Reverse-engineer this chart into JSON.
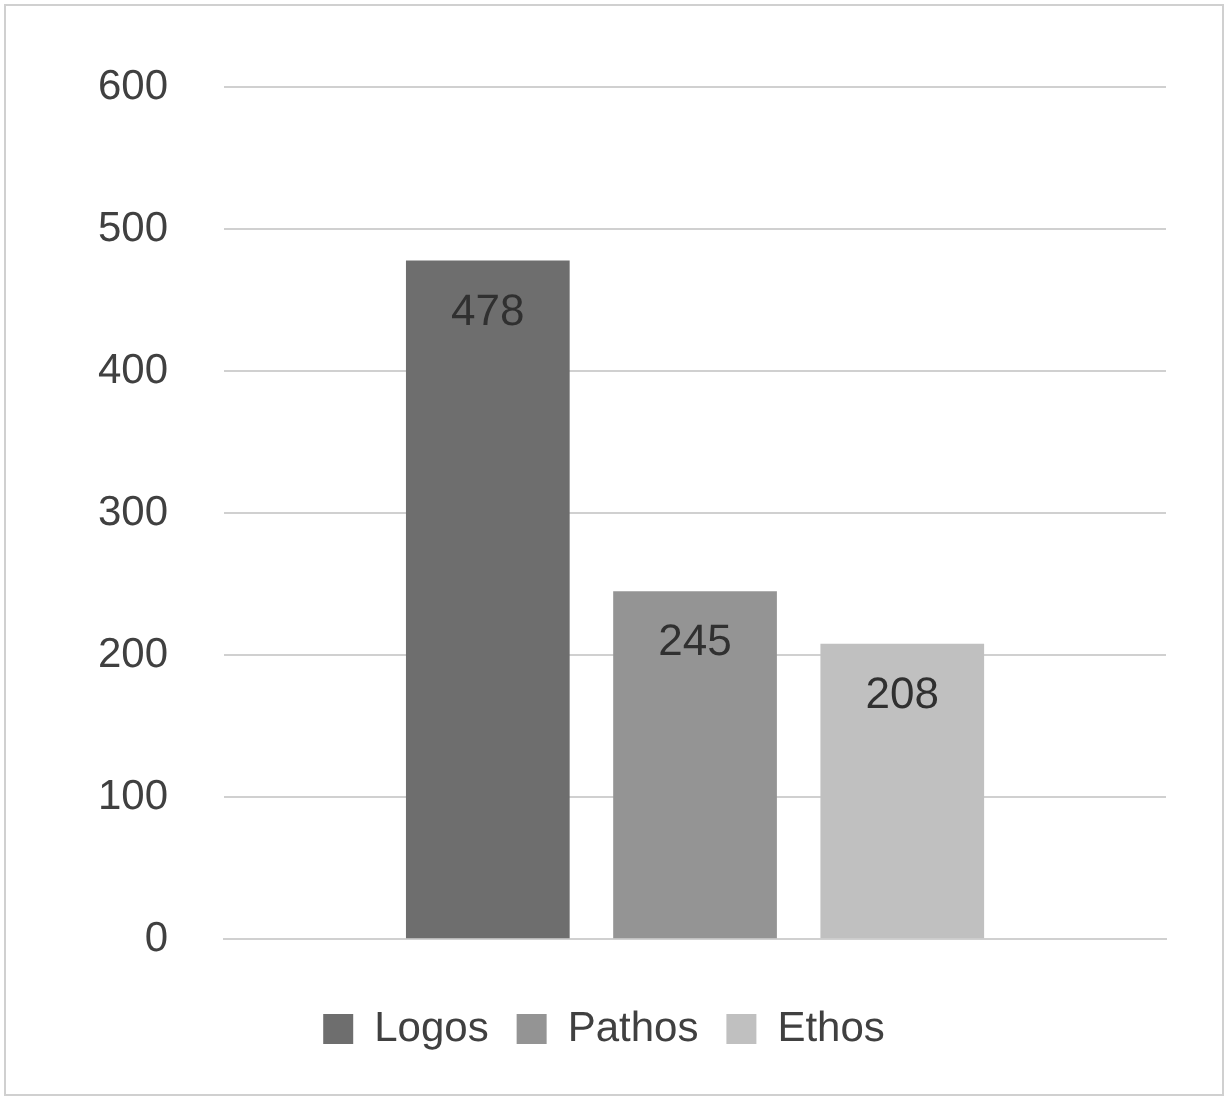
{
  "chart_data": {
    "type": "bar",
    "categories": [
      null
    ],
    "series": [
      {
        "name": "Logos",
        "color": "#6e6e6e",
        "values": [
          478
        ]
      },
      {
        "name": "Pathos",
        "color": "#949494",
        "values": [
          245
        ]
      },
      {
        "name": "Ethos",
        "color": "#c0c0c0",
        "values": [
          208
        ]
      }
    ],
    "ylim": [
      0,
      600
    ],
    "yticks": [
      0,
      100,
      200,
      300,
      400,
      500,
      600
    ],
    "grid": "y",
    "legend": "bottom",
    "data_labels": true
  }
}
